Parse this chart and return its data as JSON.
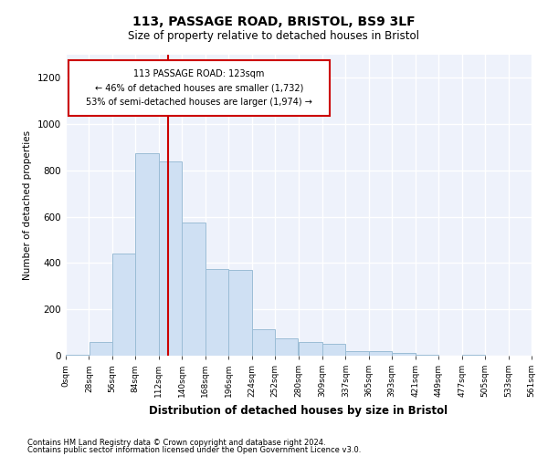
{
  "title": "113, PASSAGE ROAD, BRISTOL, BS9 3LF",
  "subtitle": "Size of property relative to detached houses in Bristol",
  "xlabel": "Distribution of detached houses by size in Bristol",
  "ylabel": "Number of detached properties",
  "bar_color": "#cfe0f3",
  "bar_edge_color": "#9bbdd6",
  "background_color": "#eef2fb",
  "grid_color": "#ffffff",
  "vline_x": 123,
  "vline_color": "#cc0000",
  "annotation_text": "113 PASSAGE ROAD: 123sqm\n← 46% of detached houses are smaller (1,732)\n53% of semi-detached houses are larger (1,974) →",
  "annotation_box_color": "#cc0000",
  "bin_edges": [
    0,
    28,
    56,
    84,
    112,
    140,
    168,
    196,
    224,
    252,
    280,
    309,
    337,
    365,
    393,
    421,
    449,
    477,
    505,
    533,
    561
  ],
  "bin_labels": [
    "0sqm",
    "28sqm",
    "56sqm",
    "84sqm",
    "112sqm",
    "140sqm",
    "168sqm",
    "196sqm",
    "224sqm",
    "252sqm",
    "280sqm",
    "309sqm",
    "337sqm",
    "365sqm",
    "393sqm",
    "421sqm",
    "449sqm",
    "477sqm",
    "505sqm",
    "533sqm",
    "561sqm"
  ],
  "heights": [
    5,
    60,
    440,
    875,
    840,
    575,
    375,
    370,
    115,
    75,
    60,
    50,
    20,
    20,
    10,
    5,
    0,
    3,
    0,
    0
  ],
  "ylim": [
    0,
    1300
  ],
  "yticks": [
    0,
    200,
    400,
    600,
    800,
    1000,
    1200
  ],
  "footer1": "Contains HM Land Registry data © Crown copyright and database right 2024.",
  "footer2": "Contains public sector information licensed under the Open Government Licence v3.0."
}
